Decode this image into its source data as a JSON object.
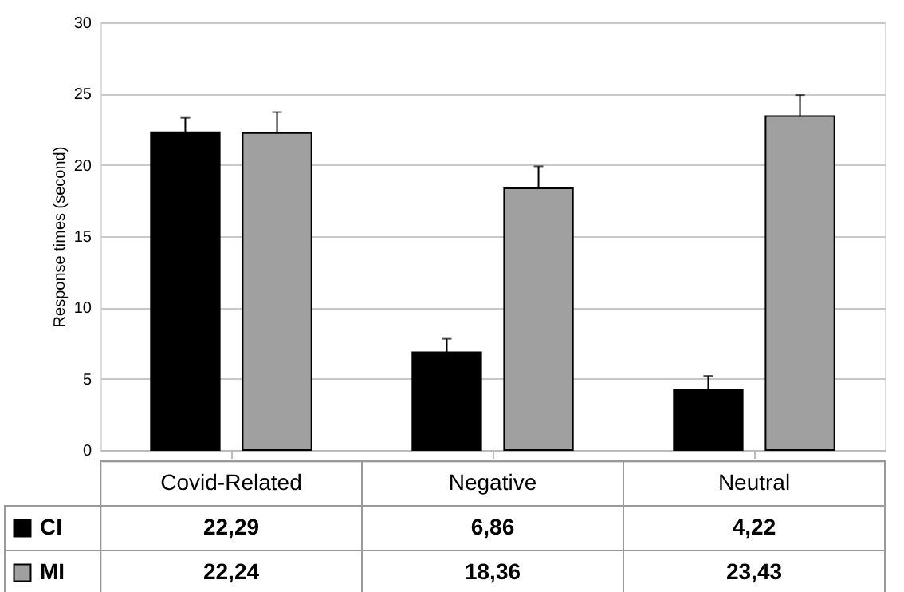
{
  "chart_data": {
    "type": "bar",
    "ylabel": "Response times (second)",
    "categories": [
      "Covid-Related",
      "Negative",
      "Neutral"
    ],
    "series": [
      {
        "name": "CI",
        "color": "#000000",
        "values": [
          22.29,
          6.86,
          4.22
        ],
        "value_labels": [
          "22,29",
          "6,86",
          "4,22"
        ],
        "errors": [
          [
            22.29,
            23.3
          ],
          [
            6.86,
            7.8
          ],
          [
            4.22,
            5.2
          ]
        ]
      },
      {
        "name": "MI",
        "color": "#a0a0a0",
        "values": [
          22.24,
          18.36,
          23.43
        ],
        "value_labels": [
          "22,24",
          "18,36",
          "23,43"
        ],
        "errors": [
          [
            22.24,
            23.7
          ],
          [
            18.36,
            19.9
          ],
          [
            23.43,
            24.9
          ]
        ]
      }
    ],
    "ylim": [
      0,
      30
    ],
    "yticks": [
      0,
      5,
      10,
      15,
      20,
      25,
      30
    ],
    "grid": "y",
    "legend": "bottom left"
  }
}
